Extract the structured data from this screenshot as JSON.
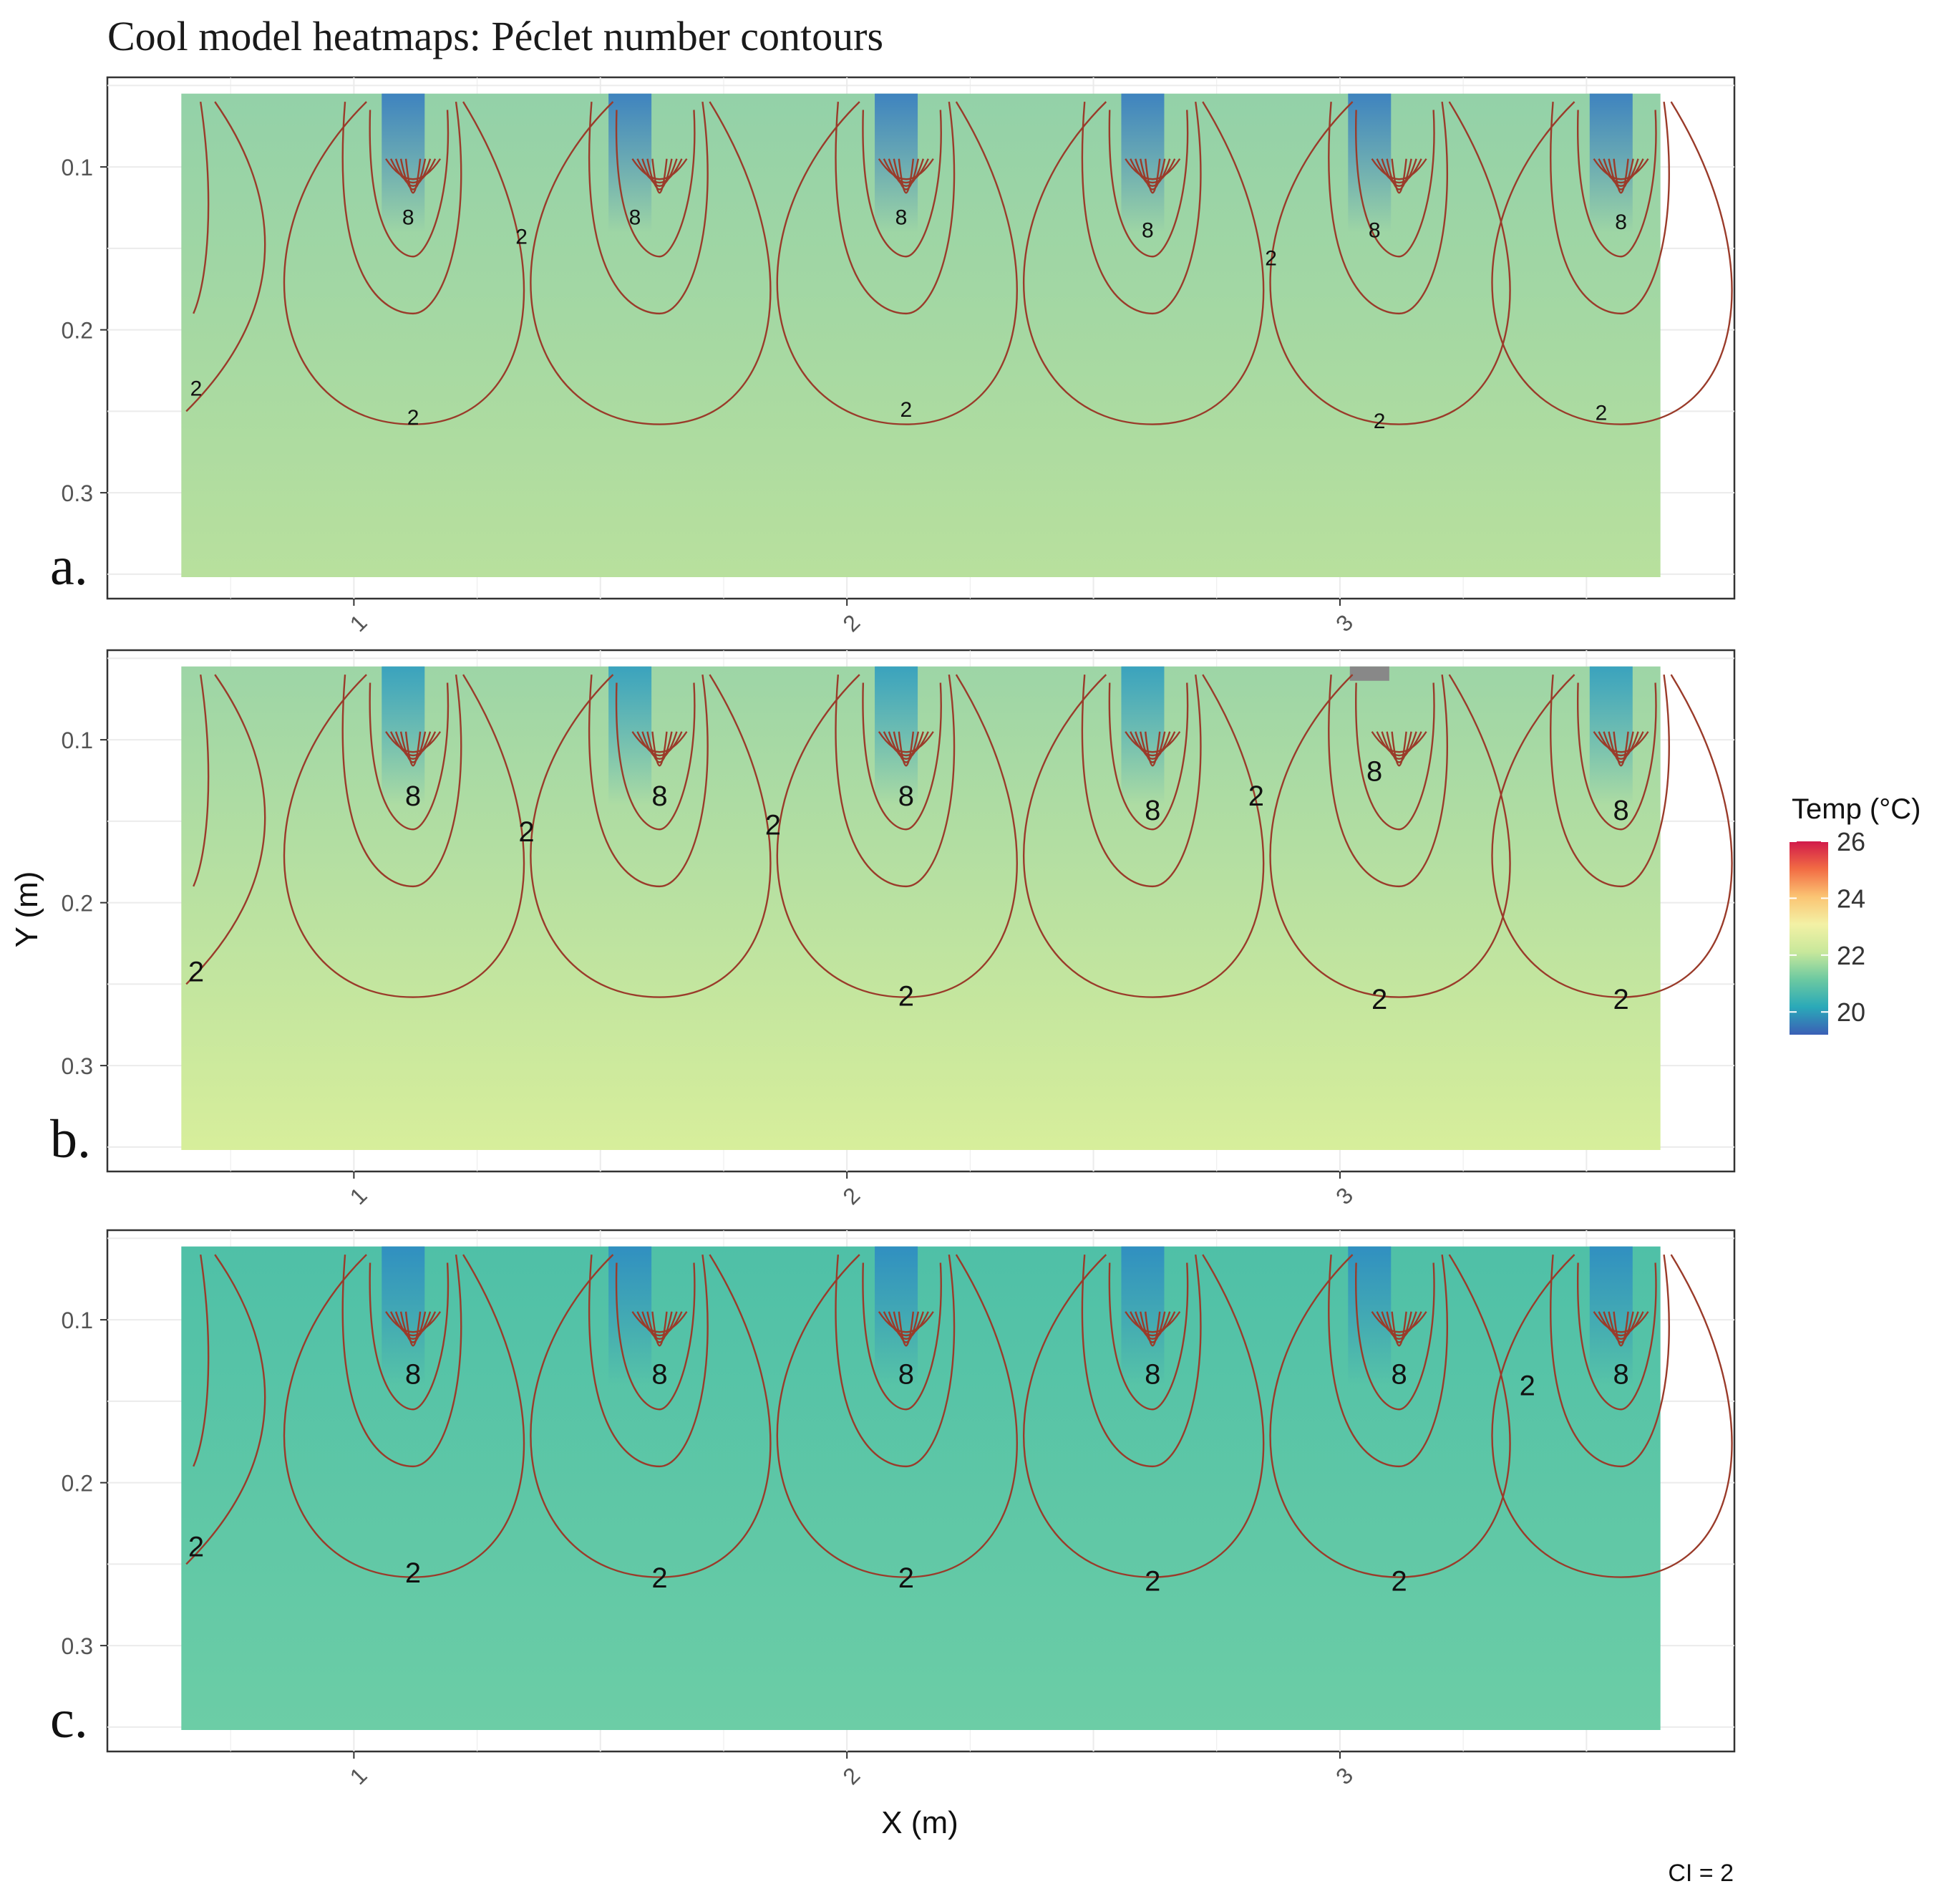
{
  "chart_data": {
    "type": "heatmap",
    "title": "Cool model heatmaps: Péclet number contours",
    "xlabel": "X (m)",
    "ylabel": "Y (m)",
    "x_ticks": [
      1,
      2,
      3
    ],
    "y_ticks": [
      0.1,
      0.2,
      0.3
    ],
    "xlim": [
      0.5,
      3.8
    ],
    "ylim": [
      0.365,
      0.045
    ],
    "grid": true,
    "legend": {
      "title": "Temp (°C)",
      "ticks": [
        20,
        22,
        24,
        26
      ],
      "range": [
        19.2,
        26.0
      ],
      "placement": "right",
      "colors": [
        "#3b5fb6",
        "#2aa9b8",
        "#6cc9a1",
        "#c8e89b",
        "#f3f1a5",
        "#fbc473",
        "#f26c44",
        "#d11a4a"
      ]
    },
    "annotation": "CI = 2",
    "contour_interval": 2,
    "panels": [
      {
        "label": "a.",
        "bg_top": "#93d1a8",
        "bg_bottom": "#b8e09d",
        "jets_x": [
          1.1,
          1.56,
          2.1,
          2.6,
          3.06,
          3.55
        ],
        "jet_color": "#3a7fc0",
        "contour_labels": [
          {
            "x": 0.68,
            "y": 0.235,
            "text": "2"
          },
          {
            "x": 1.12,
            "y": 0.253,
            "text": "2"
          },
          {
            "x": 1.34,
            "y": 0.142,
            "text": "2"
          },
          {
            "x": 2.12,
            "y": 0.248,
            "text": "2"
          },
          {
            "x": 2.86,
            "y": 0.155,
            "text": "2"
          },
          {
            "x": 3.08,
            "y": 0.255,
            "text": "2"
          },
          {
            "x": 3.53,
            "y": 0.25,
            "text": "2"
          },
          {
            "x": 1.11,
            "y": 0.13,
            "text": "8"
          },
          {
            "x": 1.57,
            "y": 0.13,
            "text": "8"
          },
          {
            "x": 2.11,
            "y": 0.13,
            "text": "8"
          },
          {
            "x": 2.61,
            "y": 0.138,
            "text": "8"
          },
          {
            "x": 3.07,
            "y": 0.138,
            "text": "8"
          },
          {
            "x": 3.57,
            "y": 0.133,
            "text": "8"
          }
        ]
      },
      {
        "label": "b.",
        "bg_top": "#9dd5a6",
        "bg_bottom": "#d7ee9b",
        "jets_x": [
          1.1,
          1.56,
          2.1,
          2.6,
          3.55
        ],
        "jet_color": "#35a0bf",
        "contour_labels": [
          {
            "x": 0.68,
            "y": 0.243,
            "text": "2"
          },
          {
            "x": 1.35,
            "y": 0.157,
            "text": "2"
          },
          {
            "x": 1.85,
            "y": 0.153,
            "text": "2"
          },
          {
            "x": 2.12,
            "y": 0.258,
            "text": "2"
          },
          {
            "x": 2.83,
            "y": 0.135,
            "text": "2"
          },
          {
            "x": 3.08,
            "y": 0.26,
            "text": "2"
          },
          {
            "x": 3.57,
            "y": 0.26,
            "text": "2"
          },
          {
            "x": 1.12,
            "y": 0.135,
            "text": "8"
          },
          {
            "x": 1.62,
            "y": 0.135,
            "text": "8"
          },
          {
            "x": 2.12,
            "y": 0.135,
            "text": "8"
          },
          {
            "x": 2.62,
            "y": 0.144,
            "text": "8"
          },
          {
            "x": 3.07,
            "y": 0.12,
            "text": "8"
          },
          {
            "x": 3.57,
            "y": 0.144,
            "text": "8"
          }
        ]
      },
      {
        "label": "c.",
        "bg_top": "#4fc0a7",
        "bg_bottom": "#6ccda6",
        "jets_x": [
          1.1,
          1.56,
          2.1,
          2.6,
          3.06,
          3.55
        ],
        "jet_color": "#2f8dc2",
        "contour_labels": [
          {
            "x": 0.68,
            "y": 0.24,
            "text": "2"
          },
          {
            "x": 1.12,
            "y": 0.256,
            "text": "2"
          },
          {
            "x": 1.62,
            "y": 0.259,
            "text": "2"
          },
          {
            "x": 2.12,
            "y": 0.259,
            "text": "2"
          },
          {
            "x": 2.62,
            "y": 0.261,
            "text": "2"
          },
          {
            "x": 3.12,
            "y": 0.261,
            "text": "2"
          },
          {
            "x": 3.38,
            "y": 0.141,
            "text": "2"
          },
          {
            "x": 1.12,
            "y": 0.134,
            "text": "8"
          },
          {
            "x": 1.62,
            "y": 0.134,
            "text": "8"
          },
          {
            "x": 2.12,
            "y": 0.134,
            "text": "8"
          },
          {
            "x": 2.62,
            "y": 0.134,
            "text": "8"
          },
          {
            "x": 3.12,
            "y": 0.134,
            "text": "8"
          },
          {
            "x": 3.57,
            "y": 0.134,
            "text": "8"
          }
        ]
      }
    ]
  }
}
